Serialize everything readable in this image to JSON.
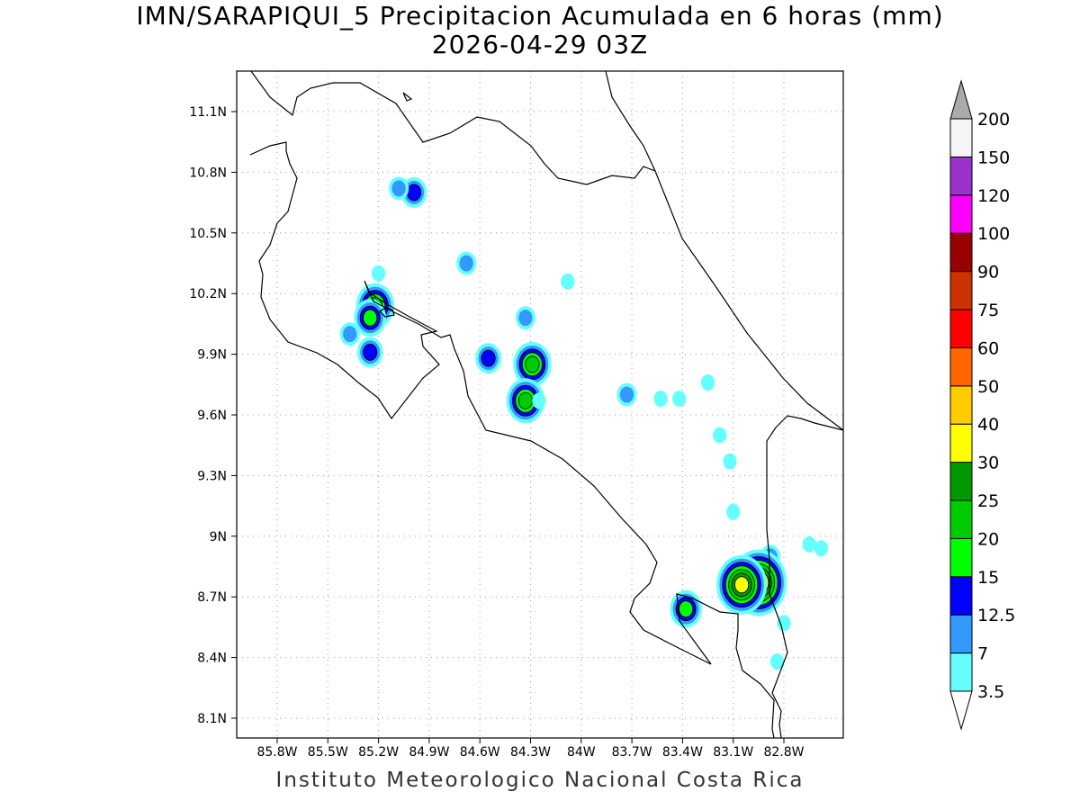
{
  "title_line1": "IMN/SARAPIQUI_5 Precipitacion Acumulada en 6 horas (mm)",
  "title_line2": "2026-04-29 03Z",
  "footer": "Instituto Meteorologico Nacional Costa Rica",
  "lon_ticks": [
    "85.8W",
    "85.5W",
    "85.2W",
    "84.9W",
    "84.6W",
    "84.3W",
    "84W",
    "83.7W",
    "83.4W",
    "83.1W",
    "82.8W"
  ],
  "lat_ticks": [
    "11.1N",
    "10.8N",
    "10.5N",
    "10.2N",
    "9.9N",
    "9.6N",
    "9.3N",
    "9N",
    "8.7N",
    "8.4N",
    "8.1N"
  ],
  "colorbar": {
    "levels": [
      "3.5",
      "7",
      "12.5",
      "15",
      "20",
      "25",
      "30",
      "40",
      "50",
      "60",
      "75",
      "90",
      "100",
      "120",
      "150",
      "200"
    ],
    "colors": [
      "#66ffff",
      "#3399ff",
      "#0000ff",
      "#00ff00",
      "#00cc00",
      "#009900",
      "#ffff00",
      "#ffcc00",
      "#ff6600",
      "#ff0000",
      "#cc3300",
      "#990000",
      "#ff00ff",
      "#9933cc",
      "#f5f5f5",
      "#aaaaaa"
    ]
  },
  "precip_cells": [
    {
      "lon": -85.22,
      "lat": 10.14,
      "mm": 20
    },
    {
      "lon": -85.25,
      "lat": 10.08,
      "mm": 15
    },
    {
      "lon": -85.37,
      "lat": 10.0,
      "mm": 7
    },
    {
      "lon": -85.25,
      "lat": 9.91,
      "mm": 12.5
    },
    {
      "lon": -85.2,
      "lat": 10.3,
      "mm": 3.5
    },
    {
      "lon": -84.99,
      "lat": 10.7,
      "mm": 12.5
    },
    {
      "lon": -85.08,
      "lat": 10.72,
      "mm": 7
    },
    {
      "lon": -84.68,
      "lat": 10.35,
      "mm": 7
    },
    {
      "lon": -84.55,
      "lat": 9.88,
      "mm": 12.5
    },
    {
      "lon": -84.29,
      "lat": 9.85,
      "mm": 20
    },
    {
      "lon": -84.33,
      "lat": 9.67,
      "mm": 20
    },
    {
      "lon": -84.33,
      "lat": 10.08,
      "mm": 7
    },
    {
      "lon": -84.25,
      "lat": 9.67,
      "mm": 3.5
    },
    {
      "lon": -84.08,
      "lat": 10.26,
      "mm": 3.5
    },
    {
      "lon": -83.73,
      "lat": 9.7,
      "mm": 7
    },
    {
      "lon": -83.53,
      "lat": 9.68,
      "mm": 3.5
    },
    {
      "lon": -83.42,
      "lat": 9.68,
      "mm": 3.5
    },
    {
      "lon": -83.25,
      "lat": 9.76,
      "mm": 3.5
    },
    {
      "lon": -83.18,
      "lat": 9.5,
      "mm": 3.5
    },
    {
      "lon": -83.12,
      "lat": 9.37,
      "mm": 3.5
    },
    {
      "lon": -83.1,
      "lat": 9.12,
      "mm": 3.5
    },
    {
      "lon": -82.88,
      "lat": 8.9,
      "mm": 7
    },
    {
      "lon": -82.95,
      "lat": 8.77,
      "mm": 40
    },
    {
      "lon": -83.05,
      "lat": 8.76,
      "mm": 30
    },
    {
      "lon": -83.38,
      "lat": 8.64,
      "mm": 15
    },
    {
      "lon": -82.8,
      "lat": 8.57,
      "mm": 3.5
    },
    {
      "lon": -82.84,
      "lat": 8.38,
      "mm": 3.5
    },
    {
      "lon": -82.65,
      "lat": 8.96,
      "mm": 3.5
    },
    {
      "lon": -82.58,
      "lat": 8.94,
      "mm": 3.5
    }
  ]
}
